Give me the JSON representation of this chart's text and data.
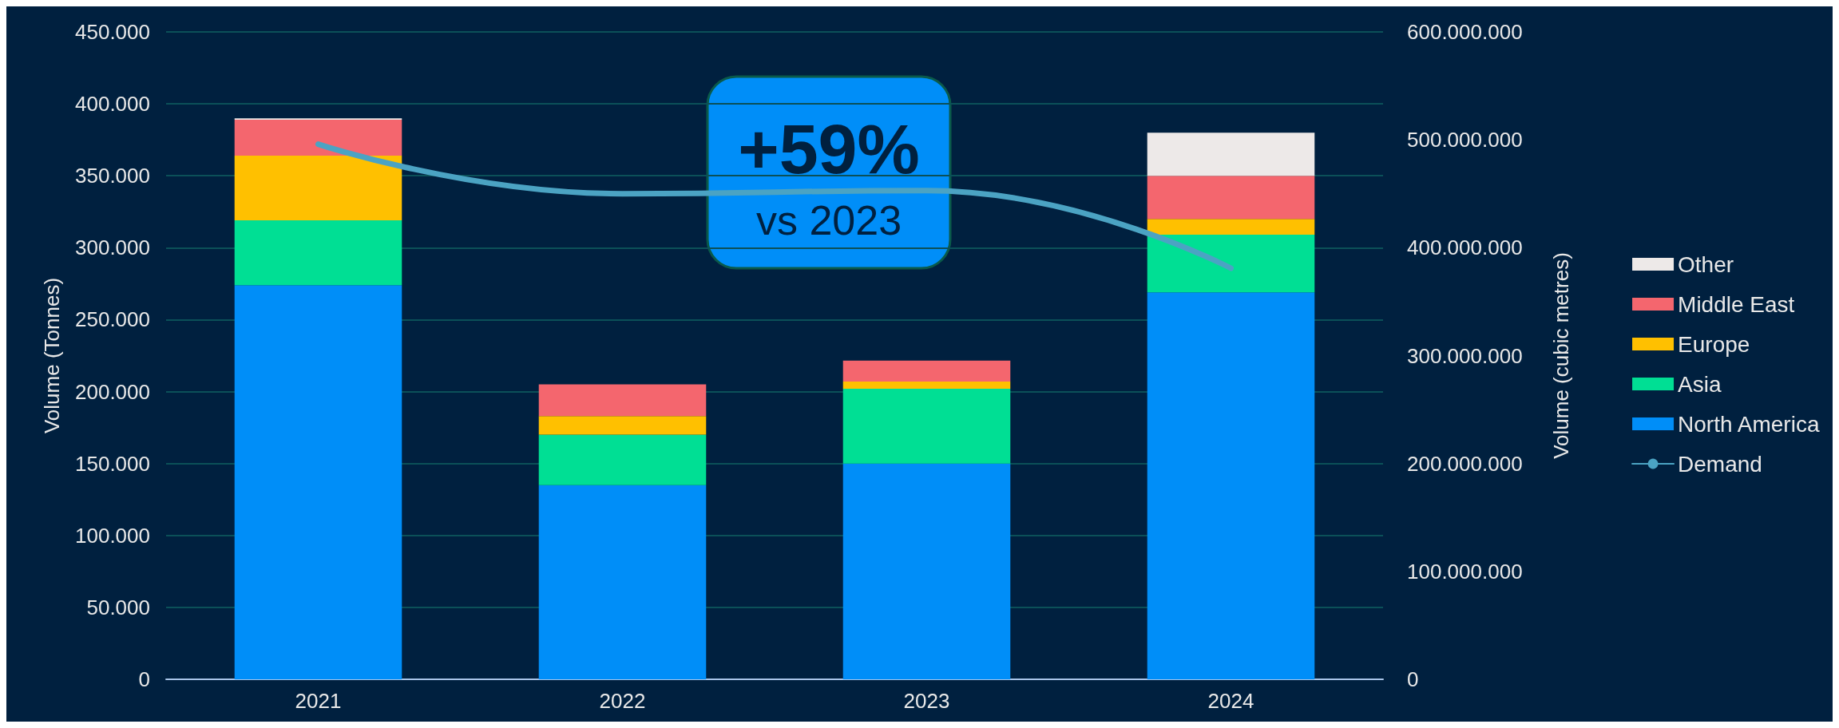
{
  "chart_data": {
    "type": "bar",
    "stacked": true,
    "categories": [
      "2021",
      "2022",
      "2023",
      "2024"
    ],
    "ylabel": "Volume (Tonnes)",
    "y2label": "Volume (cubic metres)",
    "series": [
      {
        "name": "North America",
        "color": "#008ef8",
        "values": [
          274000,
          135000,
          150000,
          269000
        ]
      },
      {
        "name": "Asia",
        "color": "#00df94",
        "values": [
          45000,
          35000,
          52000,
          40000
        ]
      },
      {
        "name": "Europe",
        "color": "#ffc000",
        "values": [
          45000,
          13000,
          5000,
          11000
        ]
      },
      {
        "name": "Middle East",
        "color": "#f4666e",
        "values": [
          25000,
          22000,
          14500,
          30000
        ]
      },
      {
        "name": "Other",
        "color": "#ede9e8",
        "values": [
          1000,
          0,
          0,
          30000
        ]
      },
      {
        "name": "Demand",
        "type": "line",
        "axis": "y2",
        "color": "#4ba3c3",
        "values": [
          496000000,
          450000000,
          453000000,
          381000000
        ]
      }
    ],
    "ylim": [
      0,
      450000
    ],
    "yticks": [
      0,
      {
        "value": 50000,
        "label": "50.000"
      },
      {
        "value": 100000,
        "label": "100.000"
      },
      {
        "value": 150000,
        "label": "150.000"
      },
      {
        "value": 200000,
        "label": "200.000"
      },
      {
        "value": 250000,
        "label": "250.000"
      },
      {
        "value": 300000,
        "label": "300.000"
      },
      {
        "value": 350000,
        "label": "350.000"
      },
      {
        "value": 400000,
        "label": "400.000"
      },
      {
        "value": 450000,
        "label": "450.000"
      }
    ],
    "y2lim": [
      0,
      600000000
    ],
    "y2ticks": [
      0,
      {
        "value": 100000000,
        "label": "100.000.000"
      },
      {
        "value": 200000000,
        "label": "200.000.000"
      },
      {
        "value": 300000000,
        "label": "300.000.000"
      },
      {
        "value": 400000000,
        "label": "400.000.000"
      },
      {
        "value": 500000000,
        "label": "500.000.000"
      },
      {
        "value": 600000000,
        "label": "600.000.000"
      }
    ],
    "grid": "y",
    "legend": "right",
    "marker": "none",
    "annotations": [
      "+59%",
      "vs 2023"
    ]
  }
}
